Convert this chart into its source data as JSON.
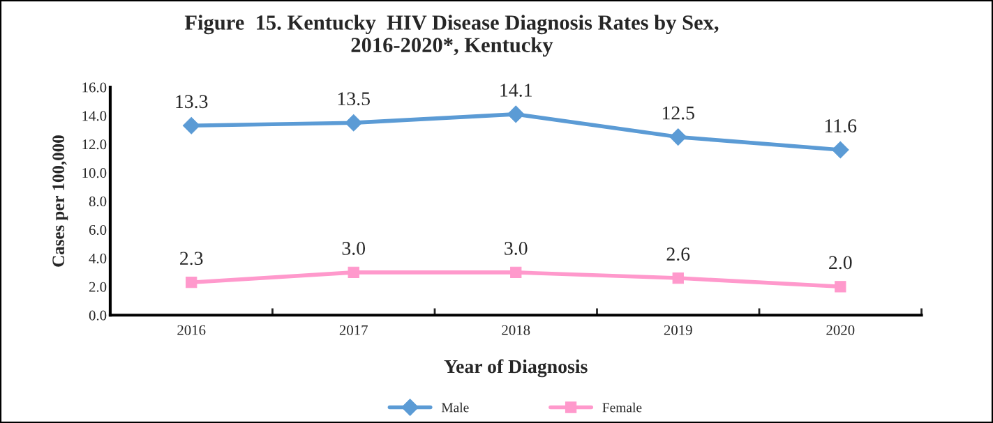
{
  "chart_data": {
    "type": "line",
    "title": "Figure  15. Kentucky  HIV Disease Diagnosis Rates by Sex,\n2016-2020*, Kentucky",
    "xlabel": "Year of Diagnosis",
    "ylabel": "Cases per 100,000",
    "categories": [
      "2016",
      "2017",
      "2018",
      "2019",
      "2020"
    ],
    "series": [
      {
        "name": "Male",
        "color": "#5b9bd5",
        "marker": "diamond",
        "values": [
          13.3,
          13.5,
          14.1,
          12.5,
          11.6
        ],
        "value_labels": [
          "13.3",
          "13.5",
          "14.1",
          "12.5",
          "11.6"
        ]
      },
      {
        "name": "Female",
        "color": "#ff99cc",
        "marker": "square",
        "values": [
          2.3,
          3.0,
          3.0,
          2.6,
          2.0
        ],
        "value_labels": [
          "2.3",
          "3.0",
          "3.0",
          "2.6",
          "2.0"
        ]
      }
    ],
    "ylim": [
      0,
      16
    ],
    "yticks": [
      {
        "value": 0,
        "label": "0.0"
      },
      {
        "value": 2,
        "label": "2.0"
      },
      {
        "value": 4,
        "label": "4.0"
      },
      {
        "value": 6,
        "label": "6.0"
      },
      {
        "value": 8,
        "label": "8.0"
      },
      {
        "value": 10,
        "label": "10.0"
      },
      {
        "value": 12,
        "label": "12.0"
      },
      {
        "value": 14,
        "label": "14.0"
      },
      {
        "value": 16,
        "label": "16.0"
      }
    ],
    "legend": "bottom",
    "grid": false
  }
}
